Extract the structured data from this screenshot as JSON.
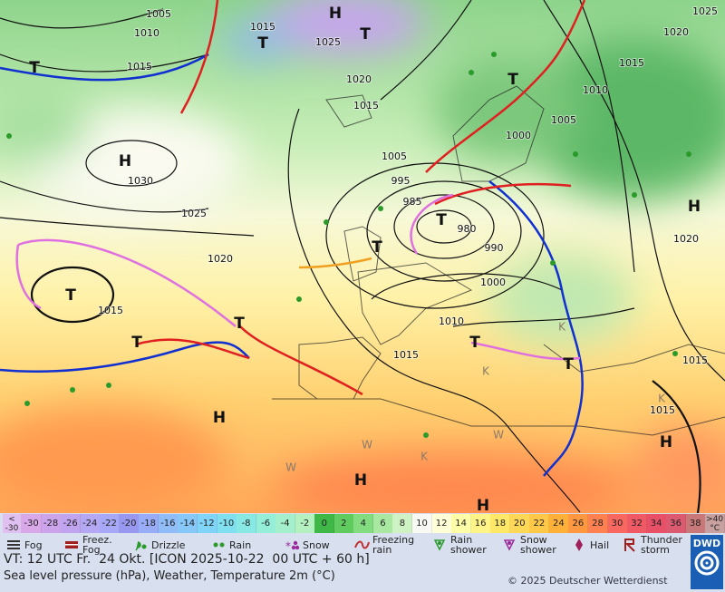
{
  "map": {
    "pressure_labels": [
      1005,
      1010,
      1015,
      1025,
      1015,
      1020,
      1015,
      1030,
      1025,
      1020,
      1015,
      1005,
      995,
      985,
      980,
      990,
      1000,
      1010,
      1015,
      1000,
      1005,
      1010,
      1015,
      1020,
      1025,
      1020,
      1015,
      1015
    ],
    "centers": [
      "H",
      "T",
      "T",
      "T",
      "T",
      "H",
      "H",
      "T",
      "T",
      "T",
      "T",
      "T",
      "T",
      "T",
      "H",
      "H",
      "H",
      "H"
    ],
    "airmass_labels": [
      "K",
      "K",
      "K",
      "K",
      "W",
      "W",
      "W"
    ]
  },
  "scale": {
    "low_label": [
      "<",
      "-30"
    ],
    "high_label": [
      ">40",
      "°C"
    ],
    "low_color": "#e0c0f0",
    "high_color": "#c8a0a0",
    "values": [
      -30,
      -28,
      -26,
      -24,
      -22,
      -20,
      -18,
      -16,
      -14,
      -12,
      -10,
      -8,
      -6,
      -4,
      -2,
      0,
      2,
      4,
      6,
      8,
      10,
      12,
      14,
      16,
      18,
      20,
      22,
      24,
      26,
      28,
      30,
      32,
      34,
      36,
      38
    ],
    "colors": [
      "#d8a8e8",
      "#cca4ec",
      "#c0a4f0",
      "#b4a8f4",
      "#a8a8f8",
      "#9898f0",
      "#98acf8",
      "#90bcf8",
      "#88c8f8",
      "#80d4f8",
      "#80e0f0",
      "#88e8e4",
      "#94eed8",
      "#a4f0cc",
      "#b4f0c0",
      "#40b848",
      "#60cc60",
      "#84dc80",
      "#a8e8a0",
      "#cef2c4",
      "#f8f8f4",
      "#ffffd8",
      "#ffffa8",
      "#fff488",
      "#ffe868",
      "#ffd858",
      "#ffc848",
      "#ffb038",
      "#ff9840",
      "#ff8050",
      "#f86860",
      "#f05a64",
      "#e85068",
      "#dc5a70",
      "#c87878"
    ]
  },
  "legend": [
    {
      "lines": [
        "Fog"
      ]
    },
    {
      "lines": [
        "Freez.",
        "Fog"
      ]
    },
    {
      "lines": [
        "Drizzle"
      ]
    },
    {
      "lines": [
        "Rain"
      ]
    },
    {
      "lines": [
        "Snow"
      ]
    },
    {
      "lines": [
        "Freezing",
        "rain"
      ]
    },
    {
      "lines": [
        "Rain",
        "shower"
      ]
    },
    {
      "lines": [
        "Snow",
        "shower"
      ]
    },
    {
      "lines": [
        "Hail"
      ]
    },
    {
      "lines": [
        "Thunder",
        "storm"
      ]
    }
  ],
  "footer": {
    "valid_time": "VT: 12 UTC Fr.  24 Okt. [ICON 2025-10-22  00 UTC + 60 h]",
    "description": "Sea level pressure (hPa), Weather, Temperature 2m (°C)",
    "copyright": "© 2025 Deutscher Wetterdienst",
    "logo": "DWD"
  }
}
